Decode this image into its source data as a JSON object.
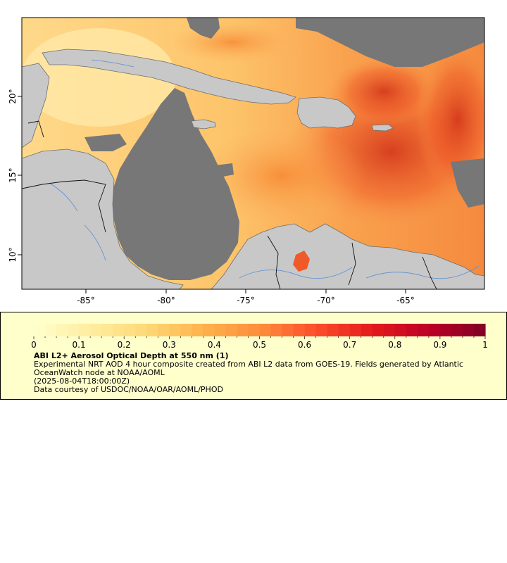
{
  "map": {
    "longitude_ticks": [
      "-85°",
      "-80°",
      "-75°",
      "-70°",
      "-65°"
    ],
    "latitude_ticks": [
      "10°",
      "15°",
      "20°"
    ],
    "colors": {
      "land": "#c8c8c8",
      "no_data": "#777777",
      "coastline": "#6e6e6e",
      "rivers": "#5b8fd6",
      "borders": "#111111"
    }
  },
  "legend": {
    "title": "ABI L2+ Aerosol Optical Depth at 550 nm (1)",
    "description": "Experimental NRT AOD 4 hour composite created from ABI L2 data from GOES-19. Fields generated by Atlantic OceanWatch node at NOAA/AOML",
    "timestamp": "(2025-08-04T18:00:00Z)",
    "credit": "Data courtesy of USDOC/NOAA/OAR/AOML/PHOD",
    "colorbar_min": 0,
    "colorbar_max": 1,
    "colorbar_steps": 40,
    "colorbar_ticks": [
      "0",
      "0.1",
      "0.2",
      "0.3",
      "0.4",
      "0.5",
      "0.6",
      "0.7",
      "0.8",
      "0.9",
      "1"
    ],
    "colormap": [
      "#ffffcc",
      "#ffeda0",
      "#fed976",
      "#feb24c",
      "#fd8d3c",
      "#fc4e2a",
      "#e31a1c",
      "#bd0026",
      "#800026"
    ]
  }
}
